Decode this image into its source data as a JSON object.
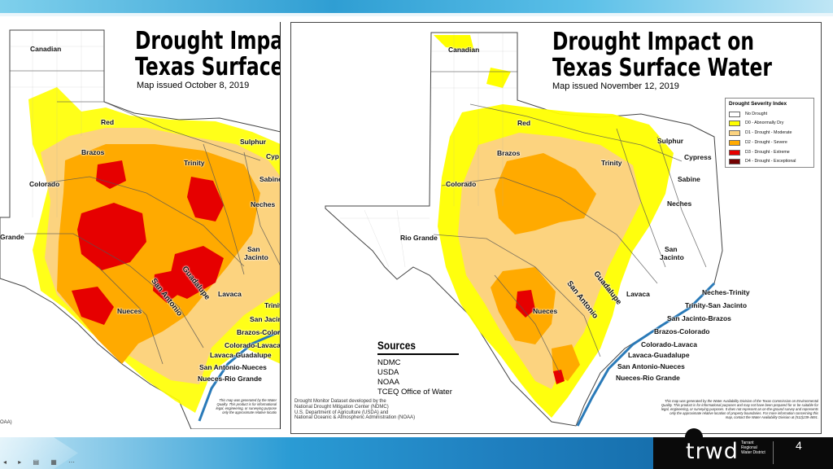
{
  "slide": {
    "page_number": "4",
    "logo_text": "trwd",
    "logo_subtext": "Tarrant Regional Water District",
    "status_controls": "◂ ▸ ▤ ▦ ⋯"
  },
  "left_map": {
    "title_line1": "Drought Impac",
    "title_line2": "Texas Surface",
    "issued": "Map issued October 8, 2019",
    "credit_fragment": "OAA)",
    "disclaimer": [
      "This map was generated by the Water",
      "Quality. This product is for informational",
      "legal, engineering, or surveying purpose",
      "only the approximate relative locatio"
    ],
    "basins": {
      "canadian": "Canadian",
      "red": "Red",
      "brazos": "Brazos",
      "sulphur": "Sulphur",
      "cypress": "Cyp",
      "trinity": "Trinity",
      "sabine": "Sabine",
      "colorado": "Colorado",
      "neches": "Neches",
      "rio_grande": "Grande",
      "san_jacinto_1": "San",
      "san_jacinto_2": "Jacinto",
      "lavaca": "Lavaca",
      "guadalupe": "Guadalupe",
      "san_antonio": "San Antonio",
      "nueces": "Nueces",
      "trinity_coastal": "Trinit",
      "san_jacinto_coastal": "San Jacin",
      "brazos_colorado": "Brazos-Colora",
      "colorado_lavaca": "Colorado-Lavaca",
      "lavaca_guadalupe": "Lavaca-Guadalupe",
      "san_antonio_nueces": "San Antonio-Nueces",
      "nueces_rio_grande": "Nueces-Rio Grande"
    }
  },
  "right_map": {
    "title_line1": "Drought Impact on",
    "title_line2": "Texas Surface Water",
    "issued": "Map issued November 12, 2019",
    "legend": {
      "title": "Drought Severity Index",
      "items": [
        {
          "label": "No Drought",
          "color": "#ffffff"
        },
        {
          "label": "D0 - Abnormally Dry",
          "color": "#ffff00"
        },
        {
          "label": "D1 - Drought - Moderate",
          "color": "#fcd37f"
        },
        {
          "label": "D2 - Drought - Severe",
          "color": "#ffaa00"
        },
        {
          "label": "D3 - Drought - Extreme",
          "color": "#e60000"
        },
        {
          "label": "D4 - Drought - Exceptional",
          "color": "#730000"
        }
      ]
    },
    "sources": {
      "heading": "Sources",
      "items": [
        "NDMC",
        "USDA",
        "NOAA",
        "TCEQ Office of Water"
      ]
    },
    "credit": [
      "Drought Monitor Dataset developed by the",
      "National Drought Mitigation Center (NDMC)",
      "U.S. Department of Agriculture (USDA) and",
      "National Oceanic & Atmospheric Administration (NOAA)"
    ],
    "disclaimer": [
      "This map was generated by the Water Availability Division of the Texas Commission on Environmental",
      "Quality. This product is for informational purposes and may not have been prepared for or be suitable for",
      "legal, engineering, or surveying purposes. It does not represent an on-the-ground survey and represents",
      "only the approximate relative location of property boundaries. For more information concerning this",
      "map, contact the Water Availability Division at (512)239-4691."
    ],
    "basins": {
      "canadian": "Canadian",
      "red": "Red",
      "brazos": "Brazos",
      "sulphur": "Sulphur",
      "cypress": "Cypress",
      "trinity": "Trinity",
      "sabine": "Sabine",
      "colorado": "Colorado",
      "neches": "Neches",
      "rio_grande": "Rio Grande",
      "san_jacinto_1": "San",
      "san_jacinto_2": "Jacinto",
      "lavaca": "Lavaca",
      "guadalupe": "Guadalupe",
      "san_antonio": "San Antonio",
      "nueces": "Nueces",
      "neches_trinity": "Neches-Trinity",
      "trinity_san_jacinto": "Trinity-San Jacinto",
      "san_jacinto_brazos": "San Jacinto-Brazos",
      "brazos_colorado": "Brazos-Colorado",
      "colorado_lavaca": "Colorado-Lavaca",
      "lavaca_guadalupe": "Lavaca-Guadalupe",
      "san_antonio_nueces": "San Antonio-Nueces",
      "nueces_rio_grande": "Nueces-Rio Grande"
    }
  },
  "colors": {
    "no_drought": "#ffffff",
    "d0": "#ffff00",
    "d1": "#fcd37f",
    "d2": "#ffaa00",
    "d3": "#e60000",
    "d4": "#730000",
    "accent_blue": "#2a9bd4"
  }
}
